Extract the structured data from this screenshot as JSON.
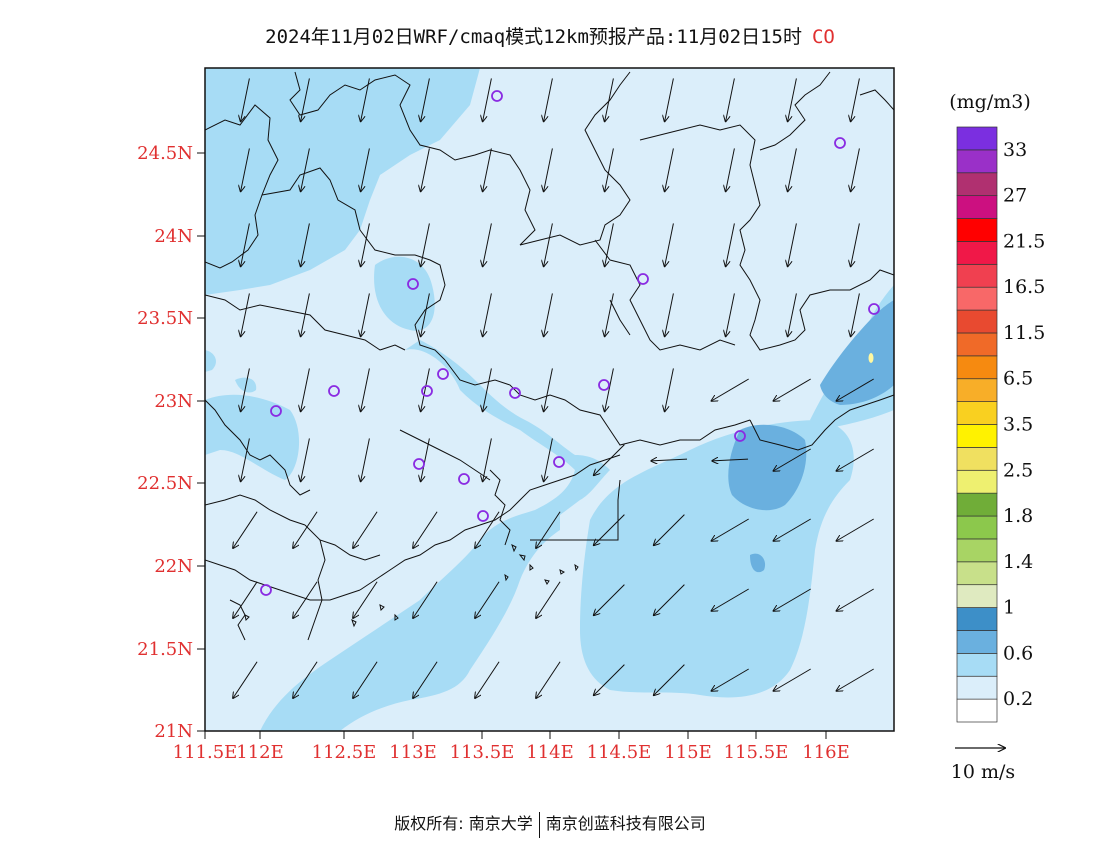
{
  "title": {
    "main": "2024年11月02日WRF/cmaq模式12km预报产品:11月02日15时",
    "pollutant": "CO"
  },
  "map": {
    "lat_labels": [
      "24.5N",
      "24N",
      "23.5N",
      "23N",
      "22.5N",
      "22N",
      "21.5N",
      "21N"
    ],
    "lon_labels": [
      "111.5E",
      "112E",
      "112.5E",
      "113E",
      "113.5E",
      "114E",
      "114.5E",
      "115E",
      "115.5E",
      "116E"
    ],
    "station_marker": "circle-icon",
    "wind_arrow": "arrow-icon"
  },
  "colorbar": {
    "unit": "(mg/m3)",
    "colors": [
      "#ffffff",
      "#dbeefa",
      "#a7dcf5",
      "#6ab0df",
      "#3d8fc8",
      "#dfeac0",
      "#c8e08a",
      "#a8d464",
      "#8cc84c",
      "#70ad38",
      "#eef070",
      "#f0e060",
      "#fff200",
      "#f9d020",
      "#f8ae28",
      "#f68a10",
      "#f06a28",
      "#e84a30",
      "#f86868",
      "#f04050",
      "#f01848",
      "#ff0000",
      "#cc1080",
      "#b03070",
      "#9a30c8",
      "#7b2fe0"
    ],
    "labels": [
      "0.2",
      "0.6",
      "1",
      "1.4",
      "1.8",
      "2.5",
      "3.5",
      "6.5",
      "11.5",
      "16.5",
      "21.5",
      "27",
      "33"
    ]
  },
  "wind_legend": {
    "label": "10 m/s"
  },
  "footer": {
    "copyright": "版权所有: 南京大学",
    "partner": "南京创蓝科技有限公司"
  }
}
